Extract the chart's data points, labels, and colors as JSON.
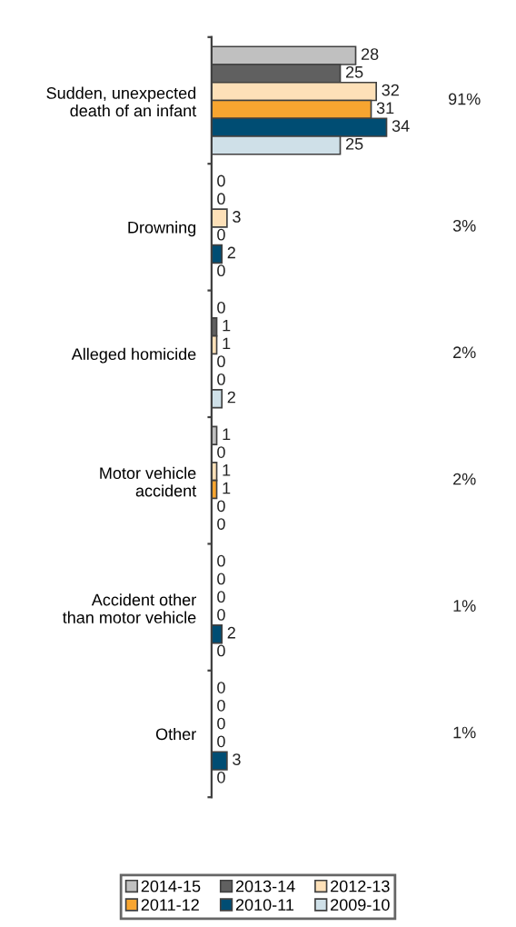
{
  "chart_data": {
    "type": "bar",
    "orientation": "horizontal",
    "data_labels": true,
    "legend": "bottom",
    "grid": false,
    "categories": [
      "Sudden, unexpected\ndeath of an infant",
      "Drowning",
      "Alleged homicide",
      "Motor vehicle\naccident",
      "Accident other\nthan motor vehicle",
      "Other"
    ],
    "series": [
      {
        "name": "2014-15",
        "color": "#c0c0c0",
        "values": [
          28,
          0,
          0,
          1,
          0,
          0
        ]
      },
      {
        "name": "2013-14",
        "color": "#606060",
        "values": [
          25,
          0,
          1,
          0,
          0,
          0
        ]
      },
      {
        "name": "2012-13",
        "color": "#fde0b8",
        "values": [
          32,
          3,
          1,
          1,
          0,
          0
        ]
      },
      {
        "name": "2011-12",
        "color": "#f8a530",
        "values": [
          31,
          0,
          0,
          1,
          0,
          0
        ]
      },
      {
        "name": "2010-11",
        "color": "#004d73",
        "values": [
          34,
          2,
          0,
          0,
          2,
          3
        ]
      },
      {
        "name": "2009-10",
        "color": "#cfe0e8",
        "values": [
          25,
          0,
          2,
          0,
          0,
          0
        ]
      }
    ],
    "annotations": [
      "91%",
      "3%",
      "2%",
      "2%",
      "1%",
      "1%"
    ]
  }
}
